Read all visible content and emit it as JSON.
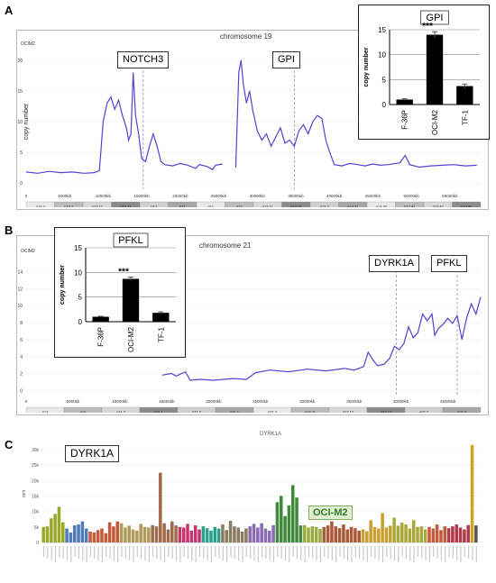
{
  "panels": {
    "a": {
      "letter": "A",
      "chromosome_title": "chromosome 19",
      "sample_tag": "OCIM2",
      "genes": [
        "NOTCH3",
        "GPI"
      ],
      "x_ticks": [
        "0",
        "5000kb",
        "10000kb",
        "15000kb",
        "20000kb",
        "25000kb",
        "30000kb",
        "35000kb",
        "40000kb",
        "45000kb",
        "50000kb",
        "55000kb"
      ],
      "y_ticks": [
        "0",
        "5",
        "10",
        "15",
        "20"
      ],
      "ylabel": "copy number",
      "bands": [
        "p13.3",
        "p13.2",
        "p13.12",
        "p13.11",
        "p12",
        "p11",
        "q11",
        "q12",
        "q13.11",
        "q13.12",
        "q13.2",
        "q13.31",
        "q13.33",
        "q13.41",
        "q13.42",
        "q13.43"
      ]
    },
    "b": {
      "letter": "B",
      "chromosome_title": "chromosome 21",
      "sample_tag": "OCIM2",
      "genes": [
        "DYRK1A",
        "PFKL"
      ],
      "x_ticks": [
        "0",
        "5000kb",
        "10000kb",
        "15000kb",
        "20000kb",
        "25000kb",
        "30000kb",
        "35000kb",
        "40000kb",
        "45000kb"
      ],
      "y_ticks": [
        "0",
        "2",
        "4",
        "6",
        "8",
        "10",
        "12",
        "14"
      ],
      "bands": [
        "p13",
        "p12",
        "p11.2",
        "p11.1",
        "q11.2",
        "q21.1",
        "q21.3",
        "q22.11",
        "q22.12",
        "q22.13",
        "q22.2",
        "q22.3"
      ]
    },
    "c": {
      "letter": "C",
      "title": "DYRK1A",
      "gene_box": "DYRK1A",
      "highlight_label": "OCI-M2",
      "ylabel": "rpm"
    }
  },
  "chart_data": [
    {
      "id": "inset-gpi",
      "type": "bar",
      "title": "GPI",
      "ylabel": "copy number",
      "categories": [
        "F-36P",
        "OCI-M2",
        "TF-1"
      ],
      "values": [
        1.0,
        14.0,
        3.7
      ],
      "errors": [
        0.15,
        0.6,
        0.4
      ],
      "ylim": [
        0,
        15
      ],
      "yticks": [
        0,
        5,
        10,
        15
      ],
      "annotation": "***"
    },
    {
      "id": "inset-pfkl",
      "type": "bar",
      "title": "PFKL",
      "ylabel": "copy number",
      "categories": [
        "F-36P",
        "OCI-M2",
        "TF-1"
      ],
      "values": [
        1.0,
        8.7,
        1.8
      ],
      "errors": [
        0.1,
        0.35,
        0.2
      ],
      "ylim": [
        0,
        15
      ],
      "yticks": [
        0,
        5,
        10,
        15
      ],
      "annotation": "***"
    },
    {
      "id": "chr19-copy-number",
      "type": "line",
      "xlim": [
        0,
        59000
      ],
      "ylim": [
        -1,
        21
      ],
      "gene_positions": {
        "NOTCH3": 15200,
        "GPI": 34800
      },
      "segments": [
        [
          [
            0,
            1.8
          ],
          [
            1500,
            1.6
          ],
          [
            3000,
            1.9
          ],
          [
            4500,
            1.7
          ],
          [
            6000,
            1.8
          ],
          [
            7500,
            1.6
          ],
          [
            8800,
            1.7
          ],
          [
            9500,
            2.0
          ],
          [
            10000,
            10
          ],
          [
            10500,
            13
          ],
          [
            11000,
            14
          ],
          [
            11500,
            12
          ],
          [
            12000,
            13.5
          ],
          [
            12500,
            11
          ],
          [
            13000,
            9
          ],
          [
            13300,
            7
          ],
          [
            13600,
            8
          ],
          [
            13900,
            18
          ],
          [
            14200,
            11
          ],
          [
            14600,
            8
          ],
          [
            15000,
            4
          ],
          [
            15500,
            3.5
          ],
          [
            16000,
            6
          ],
          [
            16500,
            8
          ],
          [
            17000,
            6
          ],
          [
            17500,
            3.5
          ],
          [
            18000,
            3.0
          ],
          [
            19000,
            2.8
          ],
          [
            20000,
            3.2
          ],
          [
            21000,
            2.9
          ],
          [
            22000,
            2.4
          ],
          [
            22500,
            3.0
          ],
          [
            23500,
            2.7
          ],
          [
            24200,
            2.2
          ],
          [
            24600,
            2.9
          ],
          [
            25500,
            3.1
          ]
        ],
        [
          [
            27200,
            2.5
          ],
          [
            27600,
            18
          ],
          [
            27900,
            20
          ],
          [
            28200,
            16
          ],
          [
            28600,
            13
          ],
          [
            29000,
            15
          ],
          [
            29400,
            12
          ],
          [
            30000,
            8.5
          ],
          [
            30600,
            7
          ],
          [
            31200,
            8
          ],
          [
            31800,
            6
          ],
          [
            32400,
            7.5
          ],
          [
            33000,
            9
          ],
          [
            33600,
            6.5
          ],
          [
            34200,
            7
          ],
          [
            34800,
            6
          ],
          [
            35400,
            8.5
          ],
          [
            36000,
            9.5
          ],
          [
            36600,
            8
          ],
          [
            37200,
            10
          ],
          [
            37800,
            11
          ],
          [
            38400,
            10.5
          ],
          [
            38900,
            7
          ],
          [
            39400,
            5
          ],
          [
            40000,
            3
          ],
          [
            41000,
            2.8
          ],
          [
            42000,
            3.2
          ],
          [
            43000,
            3.0
          ],
          [
            44000,
            2.8
          ],
          [
            45000,
            3.1
          ],
          [
            46000,
            2.9
          ],
          [
            47000,
            3.0
          ],
          [
            48500,
            3.3
          ],
          [
            49200,
            4.5
          ],
          [
            49800,
            3.0
          ],
          [
            51000,
            2.6
          ],
          [
            52500,
            2.8
          ],
          [
            54000,
            2.9
          ],
          [
            55500,
            3.0
          ],
          [
            57000,
            2.8
          ],
          [
            58500,
            2.9
          ]
        ]
      ]
    },
    {
      "id": "chr21-copy-number",
      "type": "line",
      "xlim": [
        0,
        48500
      ],
      "ylim": [
        -0.5,
        15
      ],
      "gene_positions": {
        "DYRK1A": 39500,
        "PFKL": 46000
      },
      "segments": [
        [
          [
            14500,
            1.8
          ],
          [
            15500,
            2.0
          ],
          [
            16000,
            1.7
          ],
          [
            17000,
            2.2
          ],
          [
            17500,
            1.2
          ],
          [
            18500,
            1.3
          ],
          [
            20000,
            1.2
          ],
          [
            22000,
            1.4
          ],
          [
            23500,
            1.3
          ],
          [
            24500,
            2.1
          ],
          [
            26000,
            2.4
          ],
          [
            28000,
            2.2
          ],
          [
            30000,
            2.5
          ],
          [
            32000,
            2.3
          ],
          [
            34000,
            2.6
          ],
          [
            35000,
            2.4
          ],
          [
            36000,
            2.8
          ],
          [
            36500,
            4.5
          ],
          [
            37000,
            3.6
          ],
          [
            37500,
            2.9
          ],
          [
            38200,
            3.1
          ],
          [
            38800,
            3.8
          ],
          [
            39300,
            5.2
          ],
          [
            39800,
            4.8
          ],
          [
            40300,
            5.5
          ],
          [
            40800,
            7.5
          ],
          [
            41300,
            6.2
          ],
          [
            41800,
            6.8
          ],
          [
            42300,
            9.0
          ],
          [
            42800,
            8.2
          ],
          [
            43300,
            9.0
          ],
          [
            43600,
            6.5
          ],
          [
            44000,
            7.3
          ],
          [
            44500,
            7.8
          ],
          [
            45000,
            8.5
          ],
          [
            45500,
            7.9
          ],
          [
            46000,
            8.8
          ],
          [
            46500,
            6.0
          ],
          [
            47000,
            8.5
          ],
          [
            47500,
            10.2
          ],
          [
            48000,
            9.0
          ],
          [
            48500,
            11.0
          ]
        ]
      ]
    },
    {
      "id": "dyrk1a-expression",
      "type": "bar",
      "title": "DYRK1A",
      "ylabel": "rpm",
      "ylim": [
        0,
        32000
      ],
      "yticks": [
        0,
        5000,
        10000,
        15000,
        20000,
        25000,
        30000
      ],
      "highlight": "OCI-M2",
      "groups": [
        {
          "color": "#9aa82a",
          "values": [
            5000,
            5200,
            7800,
            9200,
            11500,
            6500
          ]
        },
        {
          "color": "#4e7ab8",
          "values": [
            4500,
            3200,
            5500,
            5800,
            6800,
            4500
          ]
        },
        {
          "color": "#c25a3a",
          "values": [
            3500,
            3200,
            4000,
            4500,
            3000,
            6500,
            5200,
            6800
          ]
        },
        {
          "color": "#b09a5a",
          "values": [
            6200,
            4800,
            5400,
            4200,
            3800,
            6000,
            5000,
            4800
          ]
        },
        {
          "color": "#9e6a4a",
          "values": [
            5600,
            5200,
            22500,
            6200,
            4200,
            6800,
            5500
          ]
        },
        {
          "color": "#c2356e",
          "values": [
            5000,
            4800,
            6000,
            3800,
            5500,
            4200
          ]
        },
        {
          "color": "#2aa08a",
          "values": [
            5200,
            4600,
            3800,
            5000,
            4500
          ]
        },
        {
          "color": "#8a7a60",
          "values": [
            5800,
            4000,
            7000,
            5200,
            4800,
            3500,
            4500
          ]
        },
        {
          "color": "#8a6ab0",
          "values": [
            5200,
            6000,
            4800,
            6200,
            4500,
            3800,
            5600
          ]
        },
        {
          "color": "#3f8a3a",
          "values": [
            13000,
            15000,
            8500,
            12000,
            18500,
            14500,
            5500
          ]
        },
        {
          "color": "#9aab40",
          "values": [
            5600,
            4800,
            5200,
            5000,
            4400
          ]
        },
        {
          "color": "#a85a3a",
          "values": [
            5000,
            5500,
            6800,
            5200,
            4600,
            5800,
            4200,
            5000,
            4600,
            3800
          ]
        },
        {
          "color": "#c8a030",
          "values": [
            4200,
            3600,
            7200,
            5000,
            4500,
            9500,
            4800,
            5400
          ]
        },
        {
          "color": "#a8a83a",
          "values": [
            8000,
            5400,
            6400,
            5800,
            4500,
            7200,
            5000,
            5200,
            4200
          ]
        },
        {
          "color": "#c25a3a",
          "values": [
            5000,
            4500,
            5800,
            4000,
            5200
          ]
        },
        {
          "color": "#b03a4a",
          "values": [
            4600,
            5200,
            5800,
            4800,
            4200,
            5600
          ]
        },
        {
          "color": "#d4a020",
          "values": [
            31500
          ]
        },
        {
          "color": "#555555",
          "values": [
            5500
          ]
        }
      ]
    }
  ]
}
